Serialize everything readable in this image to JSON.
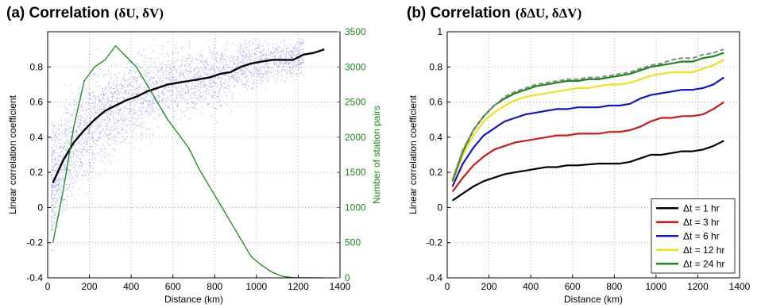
{
  "chart_data": [
    {
      "type": "scatter",
      "panel": "a",
      "title_prefix": "(a) Correlation",
      "title_math": "(δU, δV)",
      "xlabel": "Distance (km)",
      "ylabel": "Linear correlation coefficient",
      "y2label": "Number of station pairs",
      "xlim": [
        0,
        1400
      ],
      "ylim": [
        -0.4,
        1.0
      ],
      "y2lim": [
        0,
        3500
      ],
      "xticks": [
        "0",
        "200",
        "400",
        "600",
        "800",
        "1000",
        "1200",
        "1400"
      ],
      "yticks": [
        "-0.4",
        "-0.2",
        "0",
        "0.2",
        "0.4",
        "0.6",
        "0.8"
      ],
      "y2ticks": [
        "0",
        "500",
        "1000",
        "1500",
        "2000",
        "2500",
        "3000",
        "3500"
      ],
      "grid": true,
      "scatter_color": "#9999ee",
      "series": [
        {
          "name": "",
          "axis": "left",
          "color": "#000000",
          "x": [
            25,
            75,
            125,
            175,
            225,
            275,
            325,
            375,
            425,
            475,
            525,
            575,
            625,
            675,
            725,
            775,
            825,
            875,
            925,
            975,
            1025,
            1075,
            1125,
            1175,
            1225,
            1275,
            1325
          ],
          "y": [
            0.14,
            0.27,
            0.37,
            0.44,
            0.5,
            0.55,
            0.58,
            0.61,
            0.63,
            0.66,
            0.68,
            0.7,
            0.71,
            0.72,
            0.73,
            0.74,
            0.76,
            0.77,
            0.8,
            0.82,
            0.83,
            0.84,
            0.84,
            0.84,
            0.87,
            0.88,
            0.9
          ]
        },
        {
          "name": "",
          "axis": "right",
          "color": "#1a8a1a",
          "x": [
            25,
            75,
            125,
            175,
            225,
            275,
            325,
            375,
            425,
            475,
            525,
            575,
            625,
            675,
            725,
            775,
            825,
            875,
            925,
            975,
            1025,
            1075,
            1125,
            1175,
            1225,
            1275,
            1325
          ],
          "y": [
            500,
            1250,
            2150,
            2800,
            3000,
            3100,
            3300,
            3150,
            3000,
            2750,
            2500,
            2250,
            2050,
            1850,
            1550,
            1300,
            1050,
            800,
            550,
            300,
            180,
            80,
            20,
            5,
            2,
            0,
            0
          ]
        }
      ]
    },
    {
      "type": "line",
      "panel": "b",
      "title_prefix": "(b) Correlation",
      "title_math": "(δΔU, δΔV)",
      "xlabel": "Distance (km)",
      "ylabel": "Linear correlation coefficient",
      "xlim": [
        0,
        1400
      ],
      "ylim": [
        -0.4,
        1.0
      ],
      "xticks": [
        "0",
        "200",
        "400",
        "600",
        "800",
        "1000",
        "1200",
        "1400"
      ],
      "yticks": [
        "-0.4",
        "-0.2",
        "0",
        "0.2",
        "0.4",
        "0.6",
        "0.8",
        "1"
      ],
      "grid": true,
      "legend_position": "bottom-right",
      "x": [
        25,
        75,
        125,
        175,
        225,
        275,
        325,
        375,
        425,
        475,
        525,
        575,
        625,
        675,
        725,
        775,
        825,
        875,
        925,
        975,
        1025,
        1075,
        1125,
        1175,
        1225,
        1275,
        1325
      ],
      "series": [
        {
          "name": "Δt = 1 hr",
          "color": "#000000",
          "values": [
            0.04,
            0.08,
            0.12,
            0.15,
            0.17,
            0.19,
            0.2,
            0.21,
            0.22,
            0.23,
            0.23,
            0.24,
            0.24,
            0.245,
            0.25,
            0.25,
            0.25,
            0.26,
            0.28,
            0.3,
            0.3,
            0.31,
            0.32,
            0.32,
            0.33,
            0.35,
            0.38
          ]
        },
        {
          "name": "Δt = 3 hr",
          "color": "#d01818",
          "values": [
            0.09,
            0.17,
            0.24,
            0.29,
            0.33,
            0.35,
            0.37,
            0.38,
            0.39,
            0.4,
            0.41,
            0.41,
            0.42,
            0.42,
            0.42,
            0.43,
            0.43,
            0.44,
            0.46,
            0.49,
            0.51,
            0.51,
            0.52,
            0.52,
            0.53,
            0.56,
            0.6
          ]
        },
        {
          "name": "Δt = 6 hr",
          "color": "#1414c8",
          "values": [
            0.12,
            0.25,
            0.34,
            0.41,
            0.45,
            0.49,
            0.51,
            0.53,
            0.54,
            0.55,
            0.56,
            0.56,
            0.57,
            0.57,
            0.57,
            0.58,
            0.58,
            0.59,
            0.62,
            0.64,
            0.65,
            0.66,
            0.67,
            0.67,
            0.68,
            0.7,
            0.74
          ]
        },
        {
          "name": "Δt = 12 hr",
          "color": "#f2e018",
          "values": [
            0.14,
            0.3,
            0.41,
            0.49,
            0.54,
            0.58,
            0.61,
            0.63,
            0.64,
            0.65,
            0.66,
            0.67,
            0.68,
            0.68,
            0.69,
            0.7,
            0.7,
            0.71,
            0.73,
            0.75,
            0.76,
            0.77,
            0.77,
            0.77,
            0.79,
            0.81,
            0.84
          ]
        },
        {
          "name": "Δt = 24 hr",
          "color": "#1a8a1a",
          "values": [
            0.15,
            0.32,
            0.44,
            0.52,
            0.58,
            0.62,
            0.65,
            0.67,
            0.69,
            0.7,
            0.71,
            0.72,
            0.72,
            0.73,
            0.73,
            0.74,
            0.75,
            0.76,
            0.78,
            0.8,
            0.81,
            0.82,
            0.83,
            0.83,
            0.85,
            0.86,
            0.88
          ]
        },
        {
          "name": "",
          "color": "#8a8a8a",
          "dashed": true,
          "values": [
            0.16,
            0.33,
            0.44,
            0.52,
            0.58,
            0.63,
            0.66,
            0.68,
            0.7,
            0.71,
            0.72,
            0.73,
            0.73,
            0.74,
            0.74,
            0.75,
            0.76,
            0.77,
            0.79,
            0.81,
            0.82,
            0.84,
            0.85,
            0.85,
            0.87,
            0.88,
            0.9
          ]
        }
      ]
    }
  ]
}
